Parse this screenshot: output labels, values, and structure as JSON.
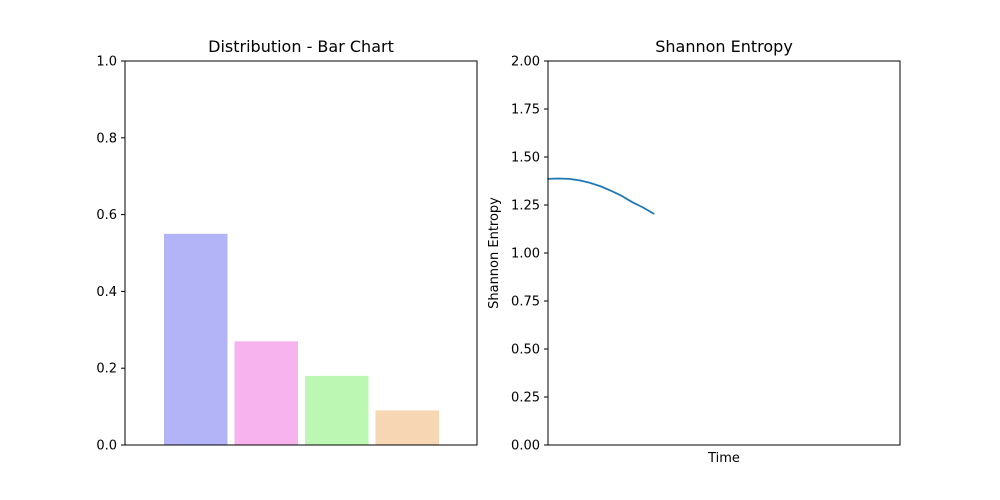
{
  "chart_data": [
    {
      "type": "bar",
      "title": "Distribution - Bar Chart",
      "xlabel": "",
      "ylabel": "",
      "ylim": [
        0,
        1.0
      ],
      "yticks": [
        "0.0",
        "0.2",
        "0.4",
        "0.6",
        "0.8",
        "1.0"
      ],
      "values": [
        0.55,
        0.27,
        0.18,
        0.09
      ],
      "colors": [
        "#b3b3f7",
        "#f7b3ed",
        "#bcf7b3",
        "#f7d6b3"
      ],
      "grid": false,
      "legend": "none"
    },
    {
      "type": "line",
      "title": "Shannon Entropy",
      "xlabel": "Time",
      "ylabel": "Shannon Entropy",
      "ylim": [
        0,
        2.0
      ],
      "xlim": [
        0,
        100
      ],
      "yticks": [
        "0.00",
        "0.25",
        "0.50",
        "0.75",
        "1.00",
        "1.25",
        "1.50",
        "1.75",
        "2.00"
      ],
      "series": [
        {
          "color": "#1f77b4",
          "x": [
            0,
            3,
            6,
            9,
            12,
            15,
            18,
            21,
            24,
            27,
            30
          ],
          "y": [
            1.386,
            1.388,
            1.386,
            1.378,
            1.365,
            1.347,
            1.323,
            1.297,
            1.264,
            1.237,
            1.205
          ]
        }
      ],
      "grid": false,
      "legend": "none"
    }
  ]
}
